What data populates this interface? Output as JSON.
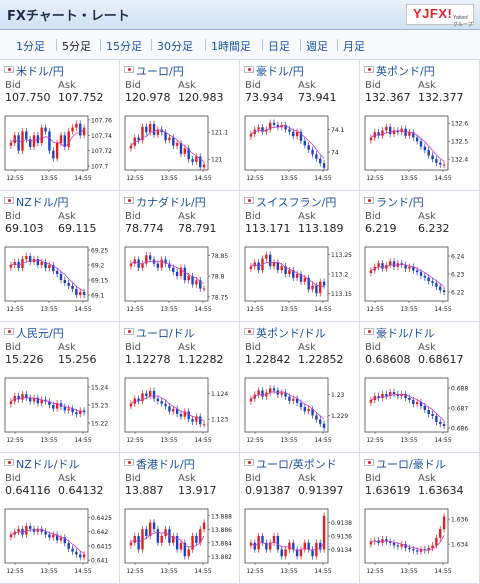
{
  "header": {
    "title": "FXチャート・レート",
    "logo_main": "YJFX!",
    "logo_sub": "Yahoo!グループ"
  },
  "tabs": [
    "1分足",
    "5分足",
    "15分足",
    "30分足",
    "1時間足",
    "日足",
    "週足",
    "月足"
  ],
  "active_tab": 1,
  "labels": {
    "bid": "Bid",
    "ask": "Ask"
  },
  "colors": {
    "up": "#e02020",
    "down": "#1f3fbf",
    "ma": "#c040c0",
    "axis": "#888888"
  },
  "pairs": [
    {
      "name": "米ドル/円",
      "bid": "107.750",
      "ask": "107.752",
      "ticks": [
        "107.76",
        "107.74",
        "107.72",
        "107.7"
      ],
      "ymin": 107.695,
      "ymax": 107.765,
      "x": [
        "12:55",
        "13:55",
        "14:55"
      ],
      "closes": [
        107.73,
        107.74,
        107.72,
        107.745,
        107.735,
        107.725,
        107.74,
        107.73,
        107.75,
        107.745,
        107.72,
        107.71,
        107.73,
        107.74,
        107.725,
        107.745,
        107.75,
        107.755,
        107.74,
        107.75
      ]
    },
    {
      "name": "ユーロ/円",
      "bid": "120.978",
      "ask": "120.983",
      "ticks": [
        "121.1",
        "121"
      ],
      "ymin": 120.96,
      "ymax": 121.16,
      "x": [
        "12:55",
        "13:55",
        "14:55"
      ],
      "closes": [
        121.05,
        121.08,
        121.07,
        121.12,
        121.1,
        121.13,
        121.09,
        121.11,
        121.1,
        121.07,
        121.08,
        121.05,
        121.06,
        121.02,
        121.04,
        121.0,
        120.99,
        121.01,
        120.97,
        120.98
      ]
    },
    {
      "name": "豪ドル/円",
      "bid": "73.934",
      "ask": "73.941",
      "ticks": [
        "74.1",
        "74"
      ],
      "ymin": 73.92,
      "ymax": 74.16,
      "x": [
        "12:55",
        "13:55",
        "14:55"
      ],
      "closes": [
        74.08,
        74.1,
        74.11,
        74.09,
        74.1,
        74.13,
        74.12,
        74.11,
        74.12,
        74.1,
        74.09,
        74.07,
        74.09,
        74.05,
        74.03,
        74.01,
        73.99,
        73.97,
        73.95,
        73.93
      ]
    },
    {
      "name": "英ポンド/円",
      "bid": "132.367",
      "ask": "132.377",
      "ticks": [
        "132.6",
        "132.5",
        "132.4"
      ],
      "ymin": 132.34,
      "ymax": 132.64,
      "x": [
        "12:55",
        "13:55",
        "14:55"
      ],
      "closes": [
        132.52,
        132.55,
        132.53,
        132.56,
        132.58,
        132.54,
        132.56,
        132.55,
        132.57,
        132.53,
        132.55,
        132.52,
        132.5,
        132.47,
        132.45,
        132.42,
        132.4,
        132.38,
        132.37,
        132.37
      ]
    },
    {
      "name": "NZドル/円",
      "bid": "69.103",
      "ask": "69.115",
      "ticks": [
        "69.25",
        "69.2",
        "69.15",
        "69.1"
      ],
      "ymin": 69.08,
      "ymax": 69.26,
      "x": [
        "12:55",
        "13:55",
        "14:55"
      ],
      "closes": [
        69.2,
        69.21,
        69.19,
        69.22,
        69.23,
        69.21,
        69.22,
        69.2,
        69.21,
        69.19,
        69.2,
        69.18,
        69.17,
        69.15,
        69.14,
        69.13,
        69.12,
        69.1,
        69.11,
        69.1
      ]
    },
    {
      "name": "カナダドル/円",
      "bid": "78.774",
      "ask": "78.791",
      "ticks": [
        "78.85",
        "78.8",
        "78.75"
      ],
      "ymin": 78.74,
      "ymax": 78.87,
      "x": [
        "12:55",
        "13:55",
        "14:55"
      ],
      "closes": [
        78.83,
        78.84,
        78.82,
        78.83,
        78.85,
        78.84,
        78.83,
        78.82,
        78.84,
        78.83,
        78.82,
        78.81,
        78.8,
        78.82,
        78.79,
        78.8,
        78.78,
        78.79,
        78.77,
        78.77
      ]
    },
    {
      "name": "スイスフラン/円",
      "bid": "113.171",
      "ask": "113.189",
      "ticks": [
        "113.25",
        "113.2",
        "113.15"
      ],
      "ymin": 113.13,
      "ymax": 113.27,
      "x": [
        "12:55",
        "13:55",
        "14:55"
      ],
      "closes": [
        113.22,
        113.23,
        113.21,
        113.24,
        113.25,
        113.22,
        113.23,
        113.21,
        113.22,
        113.2,
        113.21,
        113.19,
        113.2,
        113.18,
        113.19,
        113.16,
        113.17,
        113.15,
        113.18,
        113.17
      ]
    },
    {
      "name": "ランド/円",
      "bid": "6.219",
      "ask": "6.232",
      "ticks": [
        "6.24",
        "6.23",
        "6.22"
      ],
      "ymin": 6.215,
      "ymax": 6.245,
      "x": [
        "12:55",
        "13:55",
        "14:55"
      ],
      "closes": [
        6.232,
        6.234,
        6.236,
        6.233,
        6.235,
        6.237,
        6.234,
        6.236,
        6.235,
        6.233,
        6.234,
        6.232,
        6.231,
        6.229,
        6.228,
        6.226,
        6.225,
        6.223,
        6.221,
        6.22
      ]
    },
    {
      "name": "人民元/円",
      "bid": "15.226",
      "ask": "15.256",
      "ticks": [
        "15.24",
        "15.23",
        "15.22"
      ],
      "ymin": 15.215,
      "ymax": 15.245,
      "x": [
        "12:55",
        "13:55",
        "14:55"
      ],
      "closes": [
        15.232,
        15.235,
        15.233,
        15.236,
        15.234,
        15.232,
        15.234,
        15.231,
        15.233,
        15.232,
        15.23,
        15.228,
        15.231,
        15.229,
        15.227,
        15.228,
        15.226,
        15.225,
        15.227,
        15.226
      ]
    },
    {
      "name": "ユーロ/ドル",
      "bid": "1.12278",
      "ask": "1.12282",
      "ticks": [
        "1.124",
        "1.123"
      ],
      "ymin": 1.1225,
      "ymax": 1.1246,
      "x": [
        "12:55",
        "13:55",
        "14:55"
      ],
      "closes": [
        1.1236,
        1.1238,
        1.1237,
        1.124,
        1.1239,
        1.1241,
        1.1238,
        1.1237,
        1.1236,
        1.1235,
        1.1233,
        1.1234,
        1.1232,
        1.1231,
        1.1233,
        1.123,
        1.1229,
        1.1231,
        1.1228,
        1.1228
      ]
    },
    {
      "name": "英ポンド/ドル",
      "bid": "1.22842",
      "ask": "1.22852",
      "ticks": [
        "1.23",
        "1.229"
      ],
      "ymin": 1.2282,
      "ymax": 1.2308,
      "x": [
        "12:55",
        "13:55",
        "14:55"
      ],
      "closes": [
        1.2298,
        1.23,
        1.2302,
        1.2299,
        1.2301,
        1.2303,
        1.2302,
        1.23,
        1.2301,
        1.2299,
        1.2297,
        1.2298,
        1.2296,
        1.2294,
        1.2292,
        1.2293,
        1.229,
        1.2288,
        1.2286,
        1.2284
      ]
    },
    {
      "name": "豪ドル/ドル",
      "bid": "0.68608",
      "ask": "0.68617",
      "ticks": [
        "0.688",
        "0.687",
        "0.686"
      ],
      "ymin": 0.6858,
      "ymax": 0.6885,
      "x": [
        "12:55",
        "13:55",
        "14:55"
      ],
      "closes": [
        0.6874,
        0.6876,
        0.6875,
        0.6877,
        0.6876,
        0.6878,
        0.6877,
        0.6876,
        0.6877,
        0.6875,
        0.6874,
        0.6872,
        0.6873,
        0.6871,
        0.6869,
        0.6867,
        0.6866,
        0.6863,
        0.6862,
        0.6861
      ]
    },
    {
      "name": "NZドル/ドル",
      "bid": "0.64116",
      "ask": "0.64132",
      "ticks": [
        "0.6425",
        "0.642",
        "0.6415",
        "0.641"
      ],
      "ymin": 0.6409,
      "ymax": 0.6428,
      "x": [
        "12:55",
        "13:55",
        "14:55"
      ],
      "closes": [
        0.6419,
        0.642,
        0.6421,
        0.6419,
        0.6422,
        0.6421,
        0.642,
        0.6421,
        0.642,
        0.6419,
        0.6418,
        0.6419,
        0.6417,
        0.6418,
        0.6416,
        0.6414,
        0.6413,
        0.6412,
        0.6411,
        0.6412
      ]
    },
    {
      "name": "香港ドル/円",
      "bid": "13.887",
      "ask": "13.917",
      "ticks": [
        "13.888",
        "13.886",
        "13.884",
        "13.882"
      ],
      "ymin": 13.881,
      "ymax": 13.889,
      "x": [
        "12:55",
        "13:55",
        "14:55"
      ],
      "closes": [
        13.884,
        13.885,
        13.883,
        13.886,
        13.885,
        13.887,
        13.886,
        13.884,
        13.885,
        13.886,
        13.884,
        13.885,
        13.883,
        13.884,
        13.882,
        13.883,
        13.885,
        13.884,
        13.886,
        13.887
      ]
    },
    {
      "name": "ユーロ/英ポンド",
      "bid": "0.91387",
      "ask": "0.91397",
      "ticks": [
        "0.9138",
        "0.9136",
        "0.9134"
      ],
      "ymin": 0.9132,
      "ymax": 0.914,
      "x": [
        "12:55",
        "13:55",
        "14:55"
      ],
      "closes": [
        0.9135,
        0.9134,
        0.9136,
        0.9135,
        0.9134,
        0.9135,
        0.9136,
        0.9134,
        0.9133,
        0.9134,
        0.9135,
        0.9134,
        0.9133,
        0.9134,
        0.9135,
        0.9134,
        0.9133,
        0.9135,
        0.9134,
        0.9139
      ]
    },
    {
      "name": "ユーロ/豪ドル",
      "bid": "1.63619",
      "ask": "1.63634",
      "ticks": [
        "1.636",
        "1.634"
      ],
      "ymin": 1.6325,
      "ymax": 1.6368,
      "x": [
        "12:55",
        "13:55",
        "14:55"
      ],
      "closes": [
        1.6342,
        1.6343,
        1.6341,
        1.6344,
        1.6342,
        1.6341,
        1.6339,
        1.6338,
        1.634,
        1.6337,
        1.6336,
        1.6335,
        1.6334,
        1.6336,
        1.6335,
        1.6337,
        1.6339,
        1.6345,
        1.6352,
        1.6362
      ]
    }
  ]
}
